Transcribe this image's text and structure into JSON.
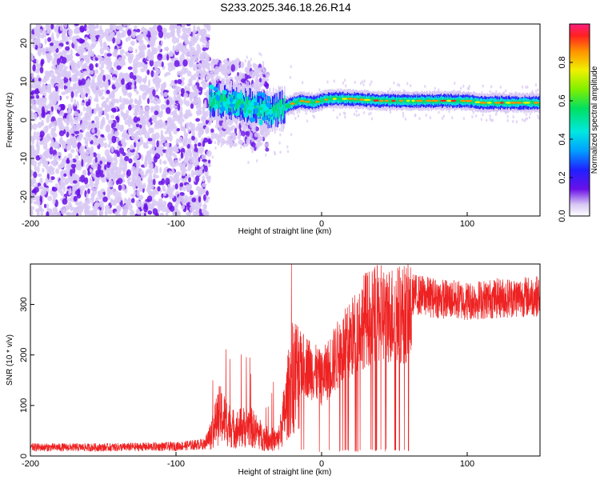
{
  "title": "S233.2025.346.18.26.R14",
  "colors": {
    "snr_line": "#ee2222",
    "axis": "#000000",
    "background": "#ffffff"
  },
  "chart_data": [
    {
      "type": "heatmap",
      "title": "S233.2025.346.18.26.R14",
      "xlabel": "Height of straight line (km)",
      "ylabel": "Frequency (Hz)",
      "xlim": [
        -200,
        150
      ],
      "ylim": [
        -25,
        25
      ],
      "xticks": [
        -200,
        -100,
        0,
        100
      ],
      "yticks": [
        -20,
        -10,
        0,
        10,
        20
      ],
      "colorbar": {
        "label": "Normalized spectral amplitude",
        "range": [
          0,
          1
        ],
        "ticks": [
          0.0,
          0.2,
          0.4,
          0.6,
          0.8
        ]
      },
      "grid": false,
      "ridge": {
        "description_points_x": [
          -75,
          -60,
          -45,
          -35,
          -25,
          -15,
          -5,
          5,
          20,
          40,
          60,
          80,
          100,
          110,
          130,
          150
        ],
        "frequency_hz": [
          5,
          4.5,
          3.5,
          2,
          3.5,
          5,
          4.5,
          5.5,
          5.5,
          5,
          5,
          5,
          5,
          4.5,
          4.5,
          4.5
        ]
      },
      "noise_region_x": [
        -200,
        -77
      ]
    },
    {
      "type": "line",
      "xlabel": "Height of straight line (km)",
      "ylabel": "SNR (10 * v/v)",
      "xlim": [
        -200,
        150
      ],
      "ylim": [
        0,
        380
      ],
      "xticks": [
        -200,
        -100,
        0,
        100
      ],
      "yticks": [
        0,
        100,
        200,
        300
      ],
      "grid": false,
      "envelope": {
        "x": [
          -200,
          -150,
          -100,
          -80,
          -70,
          -60,
          -50,
          -40,
          -30,
          -25,
          -20,
          -10,
          0,
          10,
          20,
          30,
          40,
          60,
          80,
          100,
          120,
          150
        ],
        "y": [
          18,
          18,
          20,
          25,
          110,
          70,
          80,
          50,
          40,
          120,
          220,
          210,
          180,
          230,
          270,
          320,
          330,
          330,
          320,
          315,
          320,
          325
        ]
      }
    }
  ]
}
